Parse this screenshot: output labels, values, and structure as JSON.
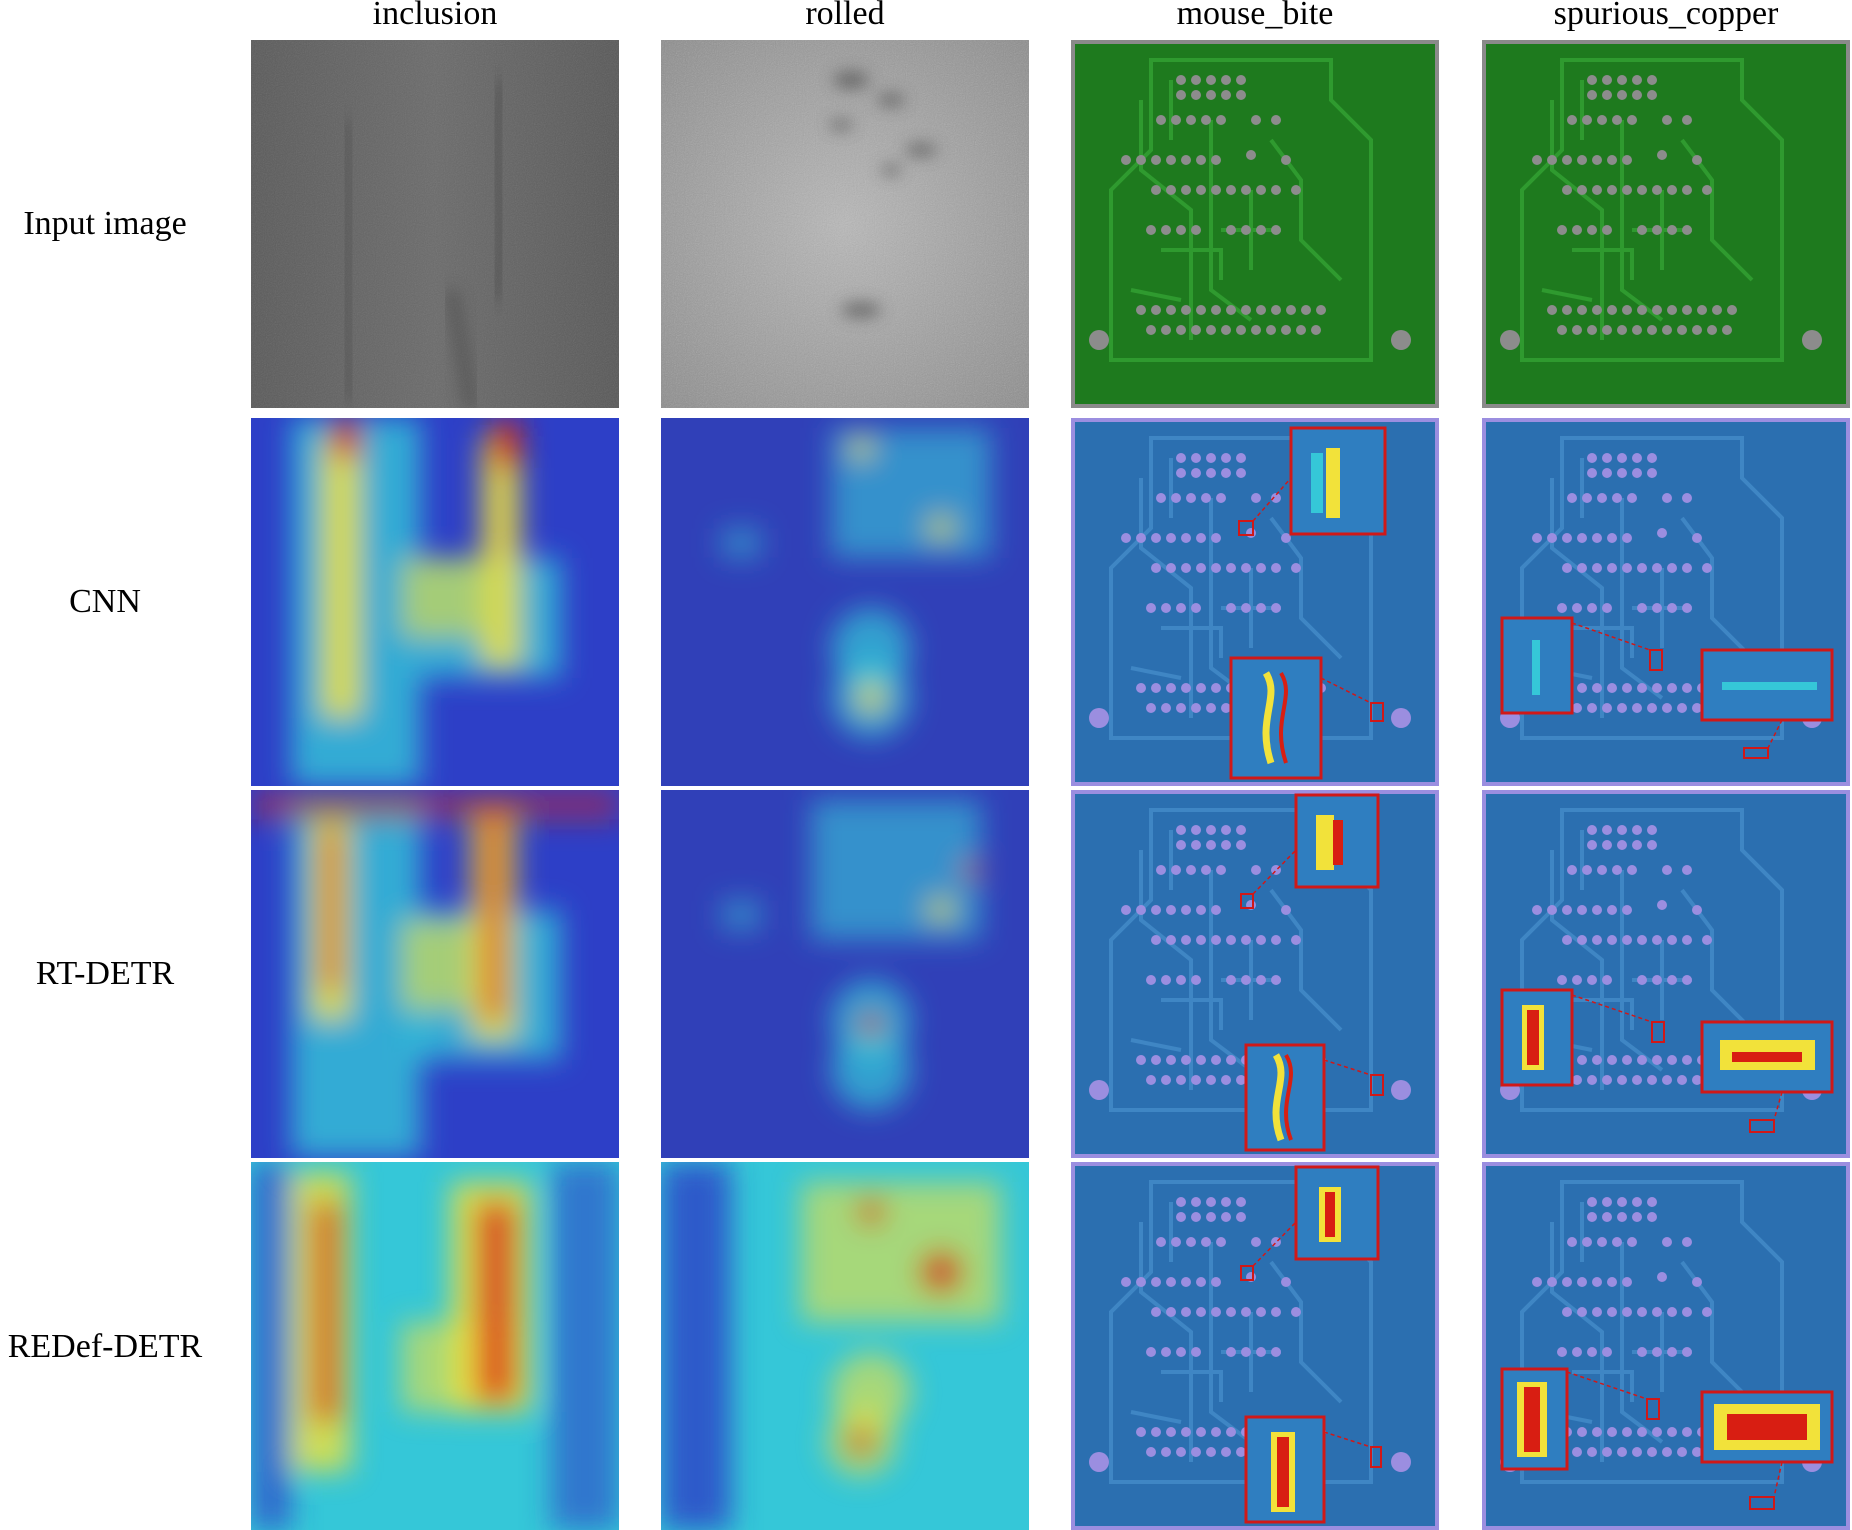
{
  "columns": [
    "inclusion",
    "rolled",
    "mouse_bite",
    "spurious_copper"
  ],
  "rows": [
    "Input image",
    "CNN",
    "RT-DETR",
    "REDef-DETR"
  ],
  "colors": {
    "pcb_green": "#1e7a1e",
    "pcb_trace": "#2f9a2f",
    "heat_bg": "#2d3fc7",
    "heat_mid": "#35c7d8",
    "heat_high": "#f2e23a",
    "heat_peak": "#d81e12",
    "zoom_box": "#d01818"
  }
}
